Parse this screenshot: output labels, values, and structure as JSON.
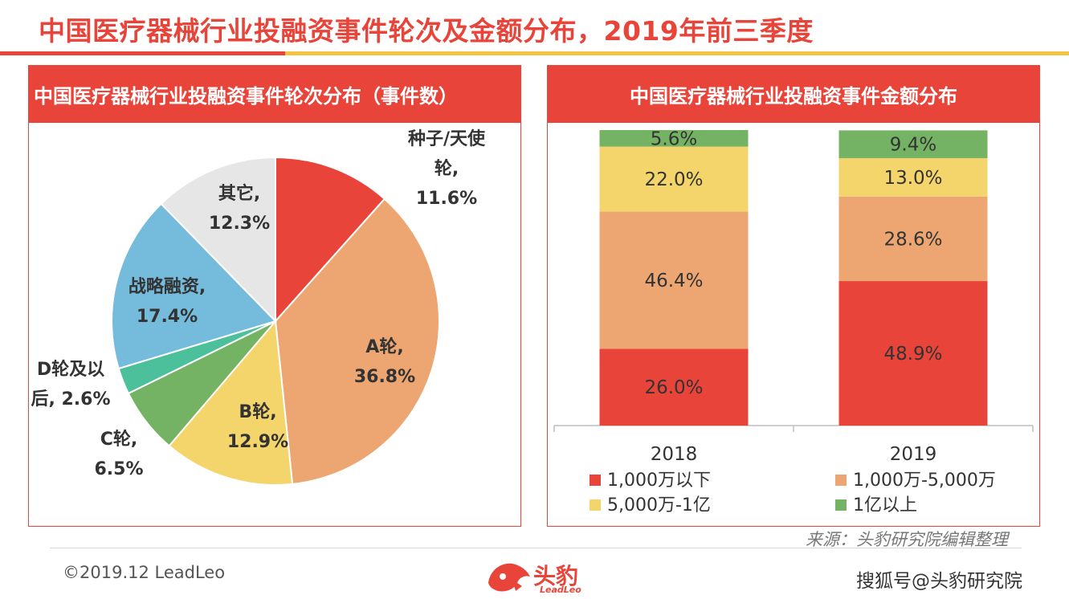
{
  "page": {
    "title": "中国医疗器械行业投融资事件轮次及金额分布，2019年前三季度",
    "copyright": "©2019.12 LeadLeo",
    "source": "来源：头豹研究院编辑整理",
    "brand": {
      "name": "头豹",
      "sub": "LeadLeo"
    },
    "watermark": "搜狐号@头豹研究院"
  },
  "colors": {
    "red": "#e8443a",
    "orange": "#eda672",
    "yellow": "#f4d56b",
    "green": "#74b363",
    "teal": "#4cbf9b",
    "blue": "#74bbdc",
    "gray": "#e6e6e6"
  },
  "chart_data": [
    {
      "type": "pie",
      "title": "中国医疗器械行业投融资事件轮次分布（事件数）",
      "slices": [
        {
          "label_lines": [
            "种子/天使",
            "轮,",
            "11.6%"
          ],
          "value": 11.6,
          "color": "#e8443a"
        },
        {
          "label_lines": [
            "A轮,",
            "36.8%"
          ],
          "value": 36.8,
          "color": "#eda672"
        },
        {
          "label_lines": [
            "B轮,",
            "12.9%"
          ],
          "value": 12.9,
          "color": "#f4d56b"
        },
        {
          "label_lines": [
            "C轮,",
            "6.5%"
          ],
          "value": 6.5,
          "color": "#74b363"
        },
        {
          "label_lines": [
            "D轮及以",
            "后, 2.6%"
          ],
          "value": 2.6,
          "color": "#4cbf9b"
        },
        {
          "label_lines": [
            "战略融资,",
            "17.4%"
          ],
          "value": 17.4,
          "color": "#74bbdc"
        },
        {
          "label_lines": [
            "其它,",
            "12.3%"
          ],
          "value": 12.3,
          "color": "#e6e6e6"
        }
      ]
    },
    {
      "type": "bar",
      "stacked": true,
      "percent": true,
      "title": "中国医疗器械行业投融资事件金额分布",
      "categories": [
        "2018",
        "2019"
      ],
      "ylim": [
        0,
        100
      ],
      "legend_position": "bottom",
      "series": [
        {
          "name": "1,000万以下",
          "values": [
            26.0,
            48.9
          ],
          "labels": [
            "26.0%",
            "48.9%"
          ],
          "color": "#e8443a"
        },
        {
          "name": "1,000万-5,000万",
          "values": [
            46.4,
            28.6
          ],
          "labels": [
            "46.4%",
            "28.6%"
          ],
          "color": "#eda672"
        },
        {
          "name": "5,000万-1亿",
          "values": [
            22.0,
            13.0
          ],
          "labels": [
            "22.0%",
            "13.0%"
          ],
          "color": "#f4d56b"
        },
        {
          "name": "1亿以上",
          "values": [
            5.6,
            9.4
          ],
          "labels": [
            "5.6%",
            "9.4%"
          ],
          "color": "#74b363"
        }
      ]
    }
  ]
}
